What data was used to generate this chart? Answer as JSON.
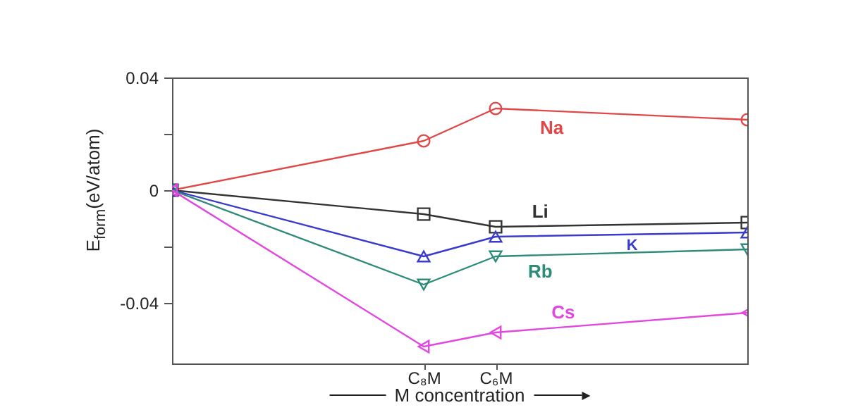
{
  "chart_data": {
    "type": "line",
    "ylabel": "E$_{form}$(eV/atom)",
    "xlabel": "M concentration",
    "categories": [
      null,
      null,
      null,
      null,
      null,
      null,
      null,
      "C₈M",
      null,
      "C₆M",
      null,
      null,
      null,
      null,
      null,
      null,
      null
    ],
    "ylim": [
      -0.0615,
      0.04
    ],
    "yticks": [
      {
        "value": 0.04,
        "label": "0.04"
      },
      {
        "value": 0.02,
        "label": null
      },
      {
        "value": 0,
        "label": "0"
      },
      {
        "value": -0.02,
        "label": null
      },
      {
        "value": -0.04,
        "label": "-0.04"
      }
    ],
    "grid": false,
    "series": [
      {
        "name": "Na",
        "color": "#e04848",
        "marker": "circle",
        "values": [
          0,
          null,
          null,
          null,
          null,
          null,
          null,
          0.0175,
          null,
          0.029,
          null,
          null,
          null,
          null,
          null,
          null,
          0.025
        ]
      },
      {
        "name": "Li",
        "color": "#333333",
        "marker": "square",
        "values": [
          0,
          null,
          null,
          null,
          null,
          null,
          null,
          -0.0085,
          null,
          -0.013,
          null,
          null,
          null,
          null,
          null,
          null,
          -0.0115
        ]
      },
      {
        "name": "K",
        "color": "#3a3acc",
        "marker": "triangle",
        "values": [
          0,
          null,
          null,
          null,
          null,
          null,
          null,
          -0.0235,
          null,
          -0.0165,
          null,
          null,
          null,
          null,
          null,
          null,
          -0.015
        ]
      },
      {
        "name": "Rb",
        "color": "#2e8b7a",
        "marker": "triangle-down",
        "values": [
          0,
          null,
          null,
          null,
          null,
          null,
          null,
          -0.0335,
          null,
          -0.0235,
          null,
          null,
          null,
          null,
          null,
          null,
          -0.021
        ]
      },
      {
        "name": "Cs",
        "color": "#e048e0",
        "marker": "triangle-left",
        "values": [
          0,
          null,
          null,
          null,
          null,
          null,
          null,
          -0.0555,
          null,
          -0.0505,
          null,
          null,
          null,
          null,
          null,
          null,
          -0.0435
        ]
      }
    ]
  }
}
